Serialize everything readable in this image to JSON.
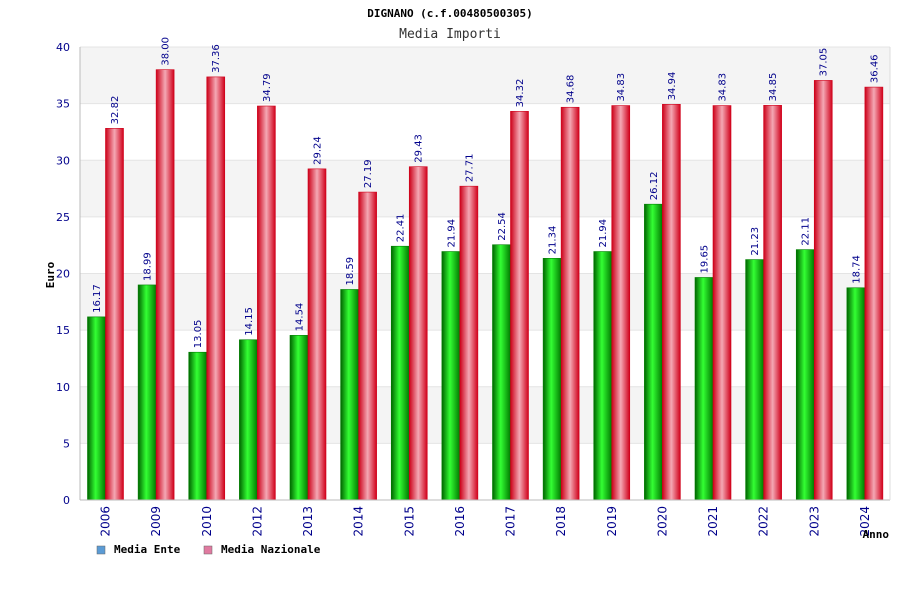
{
  "chart_data": {
    "type": "bar",
    "title": "DIGNANO (c.f.00480500305)",
    "subtitle": "Media Importi",
    "xlabel": "Anno",
    "ylabel": "Euro",
    "ylim": [
      0,
      40
    ],
    "yticks": [
      0,
      5,
      10,
      15,
      20,
      25,
      30,
      35,
      40
    ],
    "grid": true,
    "legend_position": "bottom-left",
    "categories": [
      "2006",
      "2009",
      "2010",
      "2012",
      "2013",
      "2014",
      "2015",
      "2016",
      "2017",
      "2018",
      "2019",
      "2020",
      "2021",
      "2022",
      "2023",
      "2024"
    ],
    "series": [
      {
        "name": "Media Ente",
        "legend_color": "#5b9bd5",
        "bar_color": "#00a000",
        "values": [
          16.17,
          18.99,
          13.05,
          14.15,
          14.54,
          18.59,
          22.41,
          21.94,
          22.54,
          21.34,
          21.94,
          26.12,
          19.65,
          21.23,
          22.11,
          18.74
        ],
        "labels": [
          "16.17",
          "18.99",
          "13.05",
          "14.15",
          "14.54",
          "18.59",
          "22.41",
          "21.94",
          "22.54",
          "21.34",
          "21.94",
          "26.12",
          "19.65",
          "21.23",
          "22.11",
          "18.74"
        ]
      },
      {
        "name": "Media Nazionale",
        "legend_color": "#e07aa0",
        "bar_color": "#e0001a",
        "values": [
          32.82,
          38.0,
          37.36,
          34.79,
          29.24,
          27.19,
          29.43,
          27.71,
          34.32,
          34.68,
          34.83,
          34.94,
          34.83,
          34.85,
          37.05,
          36.46
        ],
        "labels": [
          "32.82",
          "38.00",
          "37.36",
          "34.79",
          "29.24",
          "27.19",
          "29.43",
          "27.71",
          "34.32",
          "34.68",
          "34.83",
          "34.94",
          "34.83",
          "34.85",
          "37.05",
          "36.46"
        ]
      }
    ]
  }
}
